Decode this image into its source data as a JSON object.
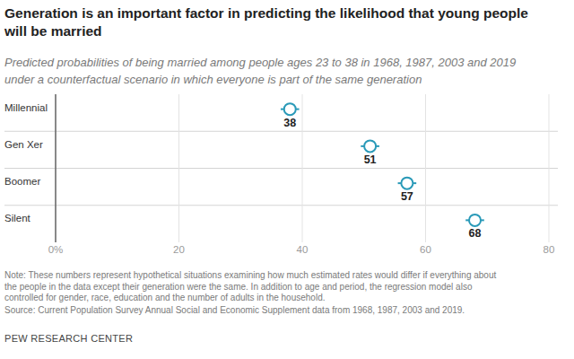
{
  "chart_data": {
    "type": "dot",
    "title": [
      "Generation is an important factor in predicting the likelihood that young people",
      "will be married"
    ],
    "subtitle": [
      "Predicted probabilities of being married among people ages 23 to 38 in 1968, 1987, 2003 and 2019",
      "under a counterfactual scenario in which everyone is part of the same generation"
    ],
    "categories": [
      "Millennial",
      "Gen Xer",
      "Boomer",
      "Silent"
    ],
    "values": [
      38,
      51,
      57,
      68
    ],
    "errors": [
      1.5,
      1.5,
      1.5,
      1.5
    ],
    "color": "#2a9ab8",
    "marker": "circle",
    "orientation": "horizontal",
    "data_labels": true,
    "grid": true,
    "xlim": [
      0,
      80
    ],
    "xticks": [
      {
        "value": 0,
        "label": "0%"
      },
      20,
      40,
      60,
      80
    ],
    "note": [
      "Note: These numbers represent hypothetical situations examining how much estimated rates would differ if everything about",
      "the people in the data except their generation were the same. In addition to age and period, the regression model also",
      "controlled for gender, race, education and the number of adults in the household."
    ],
    "source": "Source: Current Population Survey Annual Social and Economic Supplement data from 1968, 1987, 2003 and 2019.",
    "credit": "PEW RESEARCH CENTER"
  }
}
